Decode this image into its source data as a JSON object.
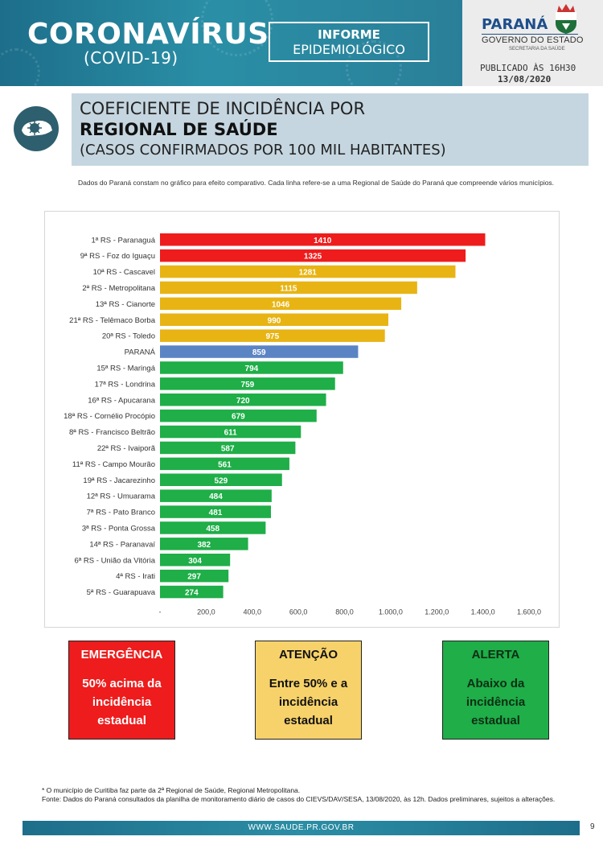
{
  "header": {
    "title": "CORONAVÍRUS",
    "subtitle": "(COVID-19)",
    "informe_line1": "INFORME",
    "informe_line2": "EPIDEMIOLÓGICO",
    "state_name": "PARANÁ",
    "government": "GOVERNO DO ESTADO",
    "secretariat": "SECRETARIA DA SAÚDE",
    "published": "PUBLICADO ÀS 16H30",
    "date": "13/08/2020"
  },
  "section": {
    "line1": "COEFICIENTE DE INCIDÊNCIA POR",
    "line2": "REGIONAL DE SAÚDE",
    "line3": "(CASOS CONFIRMADOS POR 100 MIL HABITANTES)",
    "icon": "parana-map-virus-icon"
  },
  "note": "Dados do Paraná constam no gráfico para efeito comparativo. Cada linha refere-se a uma Regional de Saúde do Paraná que compreende vários municípios.",
  "chart_data": {
    "type": "bar",
    "orientation": "horizontal",
    "categories": [
      "1ª RS - Paranaguá",
      "9ª RS - Foz do Iguaçu",
      "10ª RS - Cascavel",
      "2ª RS - Metropolitana",
      "13ª RS - Cianorte",
      "21ª RS - Telêmaco Borba",
      "20ª RS - Toledo",
      "PARANÁ",
      "15ª RS - Maringá",
      "17ª RS - Londrina",
      "16ª RS - Apucarana",
      "18ª RS - Cornélio Procópio",
      "8ª RS - Francisco Beltrão",
      "22ª RS - Ivaiporã",
      "11ª RS - Campo Mourão",
      "19ª RS - Jacarezinho",
      "12ª RS - Umuarama",
      "7ª RS - Pato Branco",
      "3ª RS - Ponta Grossa",
      "14ª RS - Paranavaí",
      "6ª RS - União da Vitória",
      "4ª RS - Irati",
      "5ª RS - Guarapuava"
    ],
    "values": [
      1410,
      1325,
      1281,
      1115,
      1046,
      990,
      975,
      859,
      794,
      759,
      720,
      679,
      611,
      587,
      561,
      529,
      484,
      481,
      458,
      382,
      304,
      297,
      274
    ],
    "data_labels": [
      "1410",
      "1325",
      "1281",
      "1115",
      "1046",
      "990",
      "975",
      "859",
      "794",
      "759",
      "720",
      "679",
      "611",
      "587",
      "561",
      "529",
      "484",
      "481",
      "458",
      "382",
      "304",
      "297",
      "274"
    ],
    "bar_colors": [
      "#ee1c1c",
      "#ee1c1c",
      "#e8b414",
      "#e8b414",
      "#e8b414",
      "#e8b414",
      "#e8b414",
      "#5b84c4",
      "#1fae48",
      "#1fae48",
      "#1fae48",
      "#1fae48",
      "#1fae48",
      "#1fae48",
      "#1fae48",
      "#1fae48",
      "#1fae48",
      "#1fae48",
      "#1fae48",
      "#1fae48",
      "#1fae48",
      "#1fae48",
      "#1fae48"
    ],
    "x_ticks": [
      "-",
      "200,0",
      "400,0",
      "600,0",
      "800,0",
      "1.000,0",
      "1.200,0",
      "1.400,0",
      "1.600,0"
    ],
    "xlim": [
      0,
      1600
    ],
    "grid": false,
    "title": "",
    "xlabel": "",
    "ylabel": ""
  },
  "legend": [
    {
      "title": "EMERGÊNCIA",
      "lines": [
        "50% acima da",
        "incidência",
        "estadual"
      ],
      "color": "#ee1c1c",
      "text_color": "#ffffff"
    },
    {
      "title": "ATENÇÃO",
      "lines": [
        "Entre 50% e a",
        "incidência",
        "estadual"
      ],
      "color": "#f7d26a",
      "text_color": "#111111"
    },
    {
      "title": "ALERTA",
      "lines": [
        "Abaixo da",
        "incidência",
        "estadual"
      ],
      "color": "#1fae48",
      "text_color": "#0b2e15"
    }
  ],
  "footnotes": {
    "line1": "* O município de Curitiba faz parte da 2ª Regional de Saúde, Regional Metropolitana.",
    "line2": "Fonte: Dados do Paraná consultados da planilha de monitoramento diário de casos do CIEVS/DAV/SESA, 13/08/2020, às 12h. Dados preliminares, sujeitos a alterações."
  },
  "footer": {
    "url": "WWW.SAUDE.PR.GOV.BR",
    "page": "9"
  }
}
